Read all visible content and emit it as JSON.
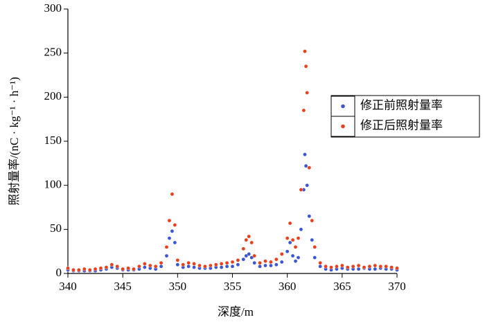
{
  "chart_data": {
    "type": "scatter",
    "x_label": "深度/m",
    "y_label": "照射量率/(nC · kg⁻¹ · h⁻¹)",
    "x": [
      340,
      340.5,
      341,
      341.5,
      342,
      342.5,
      343,
      343.5,
      344,
      344.5,
      345,
      345.5,
      346,
      346.5,
      347,
      347.5,
      348,
      348.5,
      349,
      349.25,
      349.5,
      349.75,
      350,
      350.5,
      351,
      351.5,
      352,
      352.5,
      353,
      353.5,
      354,
      354.5,
      355,
      355.5,
      356,
      356.25,
      356.5,
      356.75,
      357,
      357.5,
      358,
      358.5,
      359,
      359.5,
      360,
      360.25,
      360.5,
      360.75,
      361,
      361.25,
      361.5,
      361.6,
      361.7,
      361.8,
      362,
      362.25,
      362.5,
      363,
      363.5,
      364,
      364.5,
      365,
      365.5,
      366,
      366.5,
      367,
      367.5,
      368,
      368.5,
      369,
      369.5,
      370
    ],
    "series": [
      {
        "name": "修正前照射量率",
        "color": "#3a56d4",
        "values": [
          4,
          3,
          3,
          3,
          3,
          3,
          4,
          5,
          7,
          6,
          4,
          4,
          4,
          5,
          7,
          6,
          5,
          8,
          20,
          40,
          48,
          35,
          10,
          7,
          8,
          7,
          6,
          6,
          6,
          7,
          7,
          8,
          8,
          10,
          16,
          20,
          22,
          18,
          12,
          8,
          9,
          9,
          10,
          13,
          25,
          35,
          20,
          14,
          18,
          50,
          95,
          135,
          122,
          100,
          65,
          38,
          18,
          8,
          5,
          4,
          5,
          6,
          5,
          5,
          5,
          6,
          5,
          5,
          6,
          5,
          5,
          4
        ]
      },
      {
        "name": "修正后照射量率",
        "color": "#e8401c",
        "values": [
          6,
          4,
          4,
          5,
          4,
          5,
          6,
          7,
          10,
          8,
          5,
          6,
          5,
          8,
          11,
          9,
          8,
          12,
          30,
          60,
          90,
          55,
          15,
          10,
          12,
          11,
          9,
          8,
          9,
          10,
          11,
          12,
          13,
          15,
          28,
          38,
          42,
          35,
          20,
          12,
          14,
          13,
          16,
          22,
          40,
          57,
          38,
          30,
          40,
          95,
          185,
          252,
          235,
          205,
          120,
          60,
          30,
          12,
          8,
          7,
          8,
          9,
          7,
          8,
          9,
          7,
          8,
          9,
          8,
          8,
          7,
          6
        ]
      }
    ],
    "xlim": [
      340,
      370
    ],
    "xticks": [
      340,
      345,
      350,
      355,
      360,
      365,
      370
    ],
    "ylim": [
      0,
      300
    ],
    "yticks": [
      0,
      50,
      100,
      150,
      200,
      250,
      300
    ],
    "legend": "right"
  }
}
